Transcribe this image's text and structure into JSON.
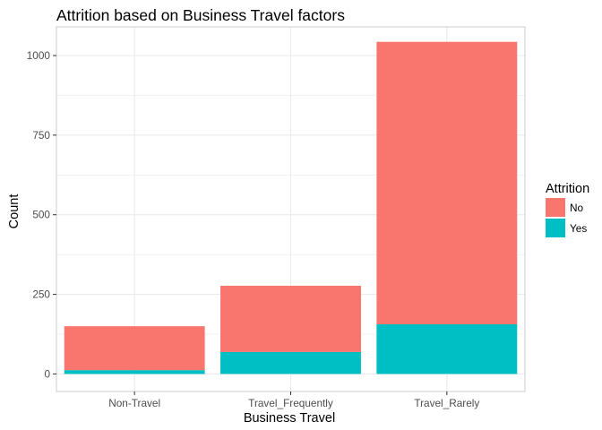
{
  "chart_data": {
    "type": "bar",
    "stacked": true,
    "title": "Attrition based on Business Travel factors",
    "xlabel": "Business Travel",
    "ylabel": "Count",
    "categories": [
      "Non-Travel",
      "Travel_Frequently",
      "Travel_Rarely"
    ],
    "series": [
      {
        "name": "No",
        "color": "#F8766D",
        "values": [
          138,
          208,
          887
        ]
      },
      {
        "name": "Yes",
        "color": "#00BFC4",
        "values": [
          12,
          69,
          156
        ]
      }
    ],
    "ylim": [
      -55,
      1090
    ],
    "yticks": [
      0,
      250,
      500,
      750,
      1000
    ],
    "ytick_labels": [
      "0",
      "250",
      "500",
      "750",
      "1000"
    ],
    "grid": true,
    "legend": {
      "title": "Attrition",
      "position": "right",
      "items": [
        {
          "label": "No",
          "color": "#F8766D"
        },
        {
          "label": "Yes",
          "color": "#00BFC4"
        }
      ]
    }
  }
}
